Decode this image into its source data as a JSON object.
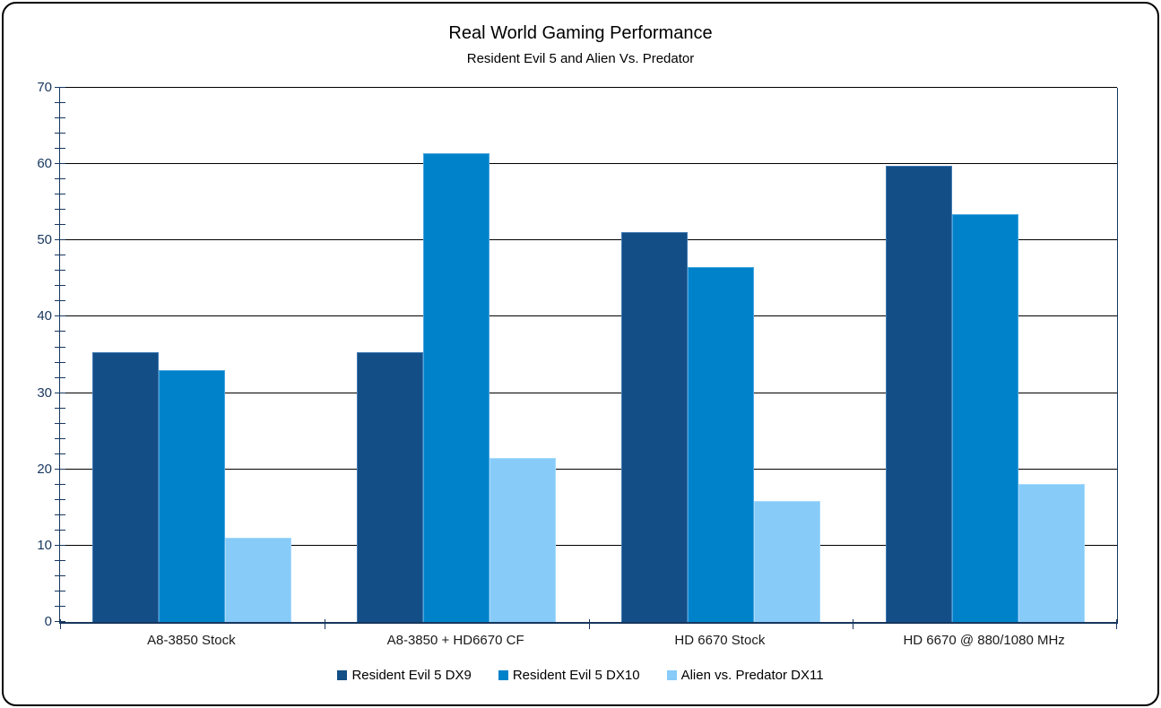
{
  "chart_data": {
    "type": "bar",
    "title": "Real World Gaming Performance",
    "subtitle": "Resident Evil 5 and Alien Vs. Predator",
    "categories": [
      "A8-3850 Stock",
      "A8-3850 + HD6670 CF",
      "HD 6670 Stock",
      "HD 6670 @ 880/1080 MHz"
    ],
    "series": [
      {
        "name": "Resident Evil 5 DX9",
        "color": "#134E87",
        "border": "#407AB2",
        "values": [
          35.4,
          35.3,
          51.1,
          59.8
        ]
      },
      {
        "name": "Resident Evil 5 DX10",
        "color": "#0082CB",
        "border": "#47A5DE",
        "values": [
          33.0,
          61.4,
          46.5,
          53.4
        ]
      },
      {
        "name": "Alien vs. Predator DX11",
        "color": "#87CBF9",
        "border": "#A6DBFD",
        "values": [
          11.0,
          21.5,
          15.8,
          18.1
        ]
      }
    ],
    "ylim": [
      0,
      70
    ],
    "y_major_step": 10,
    "y_minor_step": 2,
    "y_tick_labels": [
      "0",
      "10",
      "20",
      "30",
      "40",
      "50",
      "60",
      "70"
    ],
    "grid": true,
    "legend_position": "bottom",
    "xlabel": "",
    "ylabel": ""
  },
  "colors": {
    "axis": "#17365D",
    "gridline": "#000000",
    "frame_border": "#000000",
    "background": "#FFFFFF"
  }
}
